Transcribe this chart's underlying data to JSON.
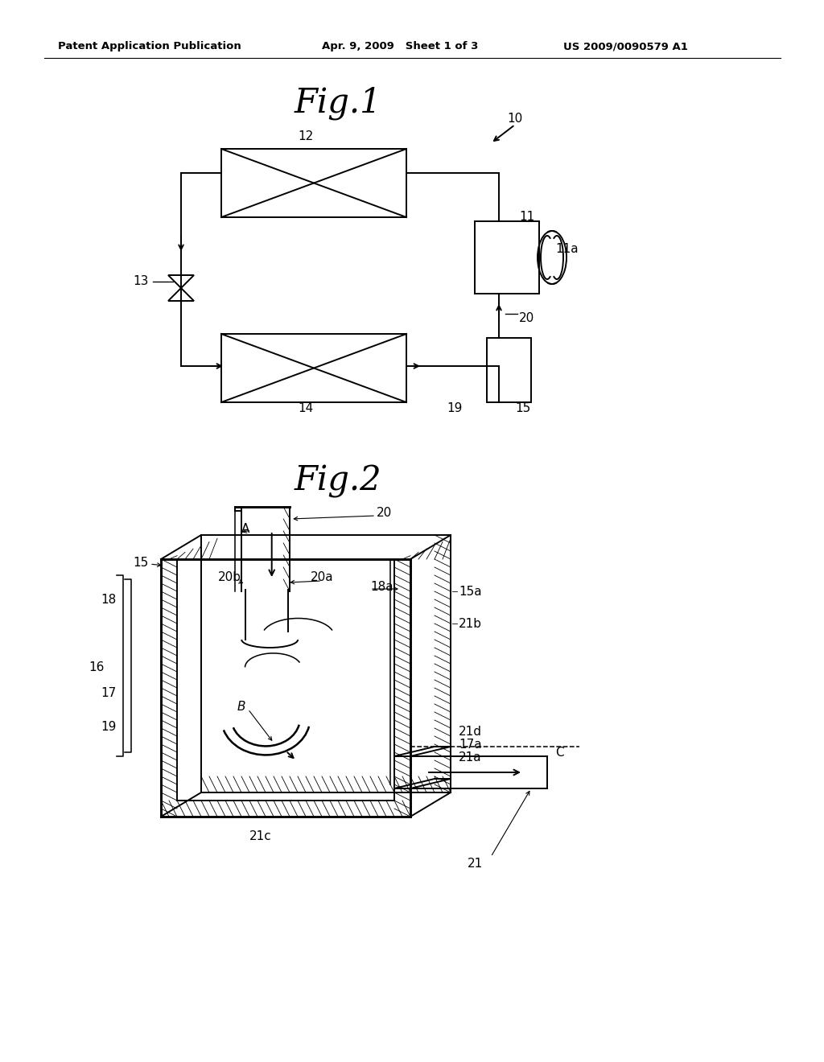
{
  "bg_color": "#ffffff",
  "header_left": "Patent Application Publication",
  "header_mid": "Apr. 9, 2009   Sheet 1 of 3",
  "header_right": "US 2009/0090579 A1",
  "line_color": "#000000",
  "lw": 1.4
}
